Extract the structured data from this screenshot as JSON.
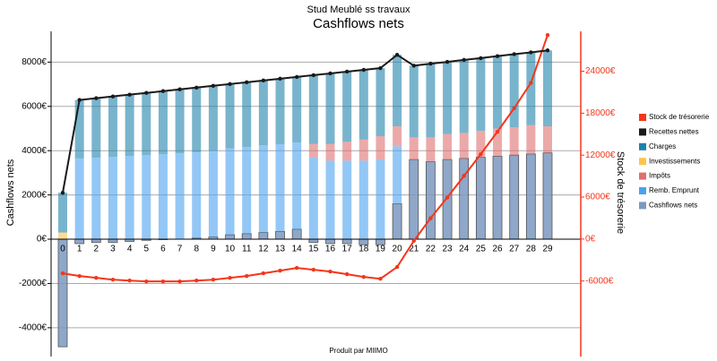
{
  "chart_data": {
    "type": "bar",
    "title": "Stud Meublé ss travaux",
    "subtitle": "Cashflows nets",
    "ylabel": "Cashflows nets",
    "y2label": "Stock de trésorerie",
    "annotation": "Produit par MIIMO",
    "categories": [
      "0",
      "1",
      "2",
      "3",
      "4",
      "5",
      "6",
      "7",
      "8",
      "9",
      "10",
      "11",
      "12",
      "13",
      "14",
      "15",
      "16",
      "17",
      "18",
      "19",
      "20",
      "21",
      "22",
      "23",
      "24",
      "25",
      "26",
      "27",
      "28",
      "29"
    ],
    "ylim": [
      -5300,
      9390
    ],
    "yticks": [
      {
        "value": -4000,
        "label": "-4000€"
      },
      {
        "value": -2000,
        "label": "-2000€"
      },
      {
        "value": 0,
        "label": "0€"
      },
      {
        "value": 2000,
        "label": "2000€"
      },
      {
        "value": 4000,
        "label": "4000€"
      },
      {
        "value": 6000,
        "label": "6000€"
      },
      {
        "value": 8000,
        "label": "8000€"
      }
    ],
    "y2lim": [
      -16800,
      29700
    ],
    "y2ticks": [
      {
        "value": -6000,
        "label": "-6000€"
      },
      {
        "value": 0,
        "label": "0€"
      },
      {
        "value": 6000,
        "label": "6000€"
      },
      {
        "value": 12000,
        "label": "12000€"
      },
      {
        "value": 18000,
        "label": "18000€"
      },
      {
        "value": 24000,
        "label": "24000€"
      }
    ],
    "grid": true,
    "legend": "right",
    "series": [
      {
        "name": "Stock de trésorerie",
        "type": "line",
        "axis": "y2",
        "color": "#f4361b",
        "values": [
          -4900,
          -5290,
          -5550,
          -5810,
          -5940,
          -6060,
          -6060,
          -6060,
          -5940,
          -5810,
          -5550,
          -5290,
          -4900,
          -4520,
          -4130,
          -4390,
          -4650,
          -5030,
          -5420,
          -5680,
          -4000,
          -260,
          2970,
          5940,
          9030,
          12130,
          15350,
          18710,
          22320,
          29160
        ]
      },
      {
        "name": "Recettes nettes",
        "type": "line",
        "color": "#1a1a1a",
        "values": [
          2100,
          6290,
          6370,
          6450,
          6530,
          6610,
          6690,
          6770,
          6850,
          6930,
          7010,
          7090,
          7170,
          7250,
          7330,
          7410,
          7490,
          7570,
          7650,
          7730,
          8330,
          7840,
          7930,
          8010,
          8100,
          8180,
          8270,
          8360,
          8440,
          8530
        ]
      },
      {
        "name": "Charges",
        "type": "bar",
        "color": "#1f82ab",
        "values": [
          1800,
          2640,
          2690,
          2730,
          2770,
          2810,
          2850,
          2890,
          2920,
          2930,
          2910,
          2920,
          2930,
          2960,
          2960,
          3110,
          3190,
          3170,
          3150,
          3080,
          3230,
          3240,
          3330,
          3260,
          3300,
          3280,
          3270,
          3310,
          3290,
          3430
        ]
      },
      {
        "name": "Investissements",
        "type": "bar",
        "color": "#ffc34d",
        "values": [
          300,
          0,
          0,
          0,
          0,
          0,
          0,
          0,
          0,
          0,
          0,
          0,
          0,
          0,
          0,
          0,
          0,
          0,
          0,
          0,
          0,
          0,
          0,
          0,
          0,
          0,
          0,
          0,
          0,
          0
        ]
      },
      {
        "name": "Impôts",
        "type": "bar",
        "color": "#e07070",
        "values": [
          0,
          0,
          0,
          0,
          0,
          0,
          0,
          0,
          0,
          0,
          0,
          0,
          0,
          0,
          0,
          600,
          750,
          850,
          950,
          1050,
          900,
          1000,
          1100,
          1150,
          1150,
          1200,
          1250,
          1250,
          1300,
          1200
        ]
      },
      {
        "name": "Remb. Emprunt",
        "type": "bar",
        "color": "#4ba1f0",
        "values": [
          0,
          3650,
          3680,
          3720,
          3760,
          3800,
          3840,
          3880,
          3880,
          3900,
          3900,
          3920,
          3940,
          3940,
          3920,
          3700,
          3550,
          3550,
          3550,
          3600,
          2600,
          0,
          0,
          0,
          0,
          0,
          0,
          0,
          0,
          0
        ]
      },
      {
        "name": "Cashflows nets",
        "type": "bar",
        "color": "#7b98c0",
        "values": [
          -4860,
          -200,
          -150,
          -150,
          -100,
          -50,
          -20,
          0,
          50,
          100,
          200,
          250,
          300,
          350,
          450,
          -150,
          -200,
          -200,
          -250,
          -250,
          1600,
          3600,
          3500,
          3600,
          3650,
          3700,
          3750,
          3800,
          3850,
          3900
        ]
      }
    ]
  }
}
